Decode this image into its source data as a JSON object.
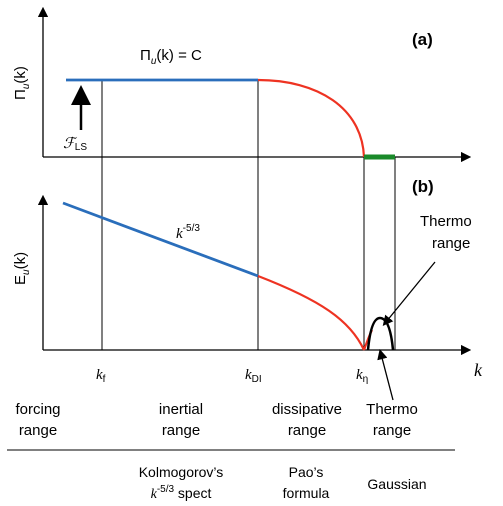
{
  "panel_a": {
    "tag": "(a)",
    "ylabel_base": "Π",
    "ylabel_sub": "u",
    "ylabel_arg": "(k)",
    "curve_label_base": "Π",
    "curve_label_sub": "u",
    "curve_label_arg": "(k) = C",
    "forcing_symbol": "ℱ",
    "forcing_sub": "LS"
  },
  "panel_b": {
    "tag": "(b)",
    "ylabel_base": "E",
    "ylabel_sub": "u",
    "ylabel_arg": "(k)",
    "slope_base": "k",
    "slope_exp": "-5/3",
    "thermo_callout_1": "Thermo",
    "thermo_callout_2": "range"
  },
  "x_axis": {
    "label": "k",
    "ticks": [
      {
        "base": "k",
        "sub": "f"
      },
      {
        "base": "k",
        "sub": "DI"
      },
      {
        "base": "k",
        "sub": "η"
      }
    ]
  },
  "ranges": [
    {
      "line1": "forcing",
      "line2": "range"
    },
    {
      "line1": "inertial",
      "line2": "range"
    },
    {
      "line1": "dissipative",
      "line2": "range"
    },
    {
      "line1": "Thermo",
      "line2": "range"
    }
  ],
  "models": {
    "kolmogorov_1": "Kolmogorov’s",
    "kolmogorov_2_base": "k",
    "kolmogorov_2_exp": "-5/3",
    "kolmogorov_2_rest": " spect",
    "pao_1": "Pao’s",
    "pao_2": "formula",
    "gaussian": "Gaussian"
  },
  "colors": {
    "blue": "#2a6ebb",
    "red": "#ee3322",
    "green": "#1a8a2a",
    "black": "#000000"
  }
}
